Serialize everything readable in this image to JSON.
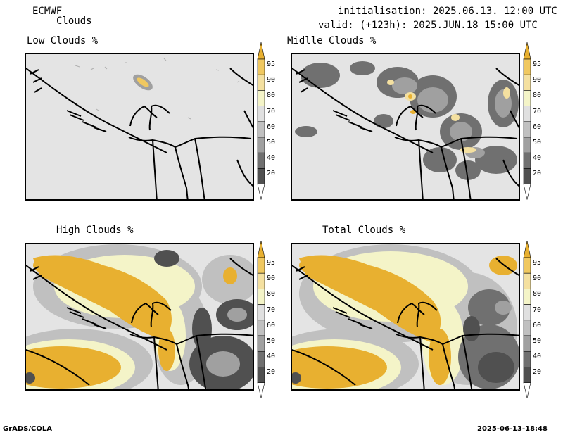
{
  "header": {
    "model": "ECMWF",
    "product": "Clouds",
    "init": "initialisation: 2025.06.13. 12:00 UTC",
    "valid": "valid: (+123h): 2025.JUN.18 15:00 UTC"
  },
  "panels": [
    {
      "title": "Low Clouds %"
    },
    {
      "title": "Midlle Clouds %"
    },
    {
      "title": "High Clouds %"
    },
    {
      "title": "Total Clouds %"
    }
  ],
  "colorbar": {
    "labels": [
      "95",
      "90",
      "80",
      "70",
      "60",
      "50",
      "40",
      "20"
    ],
    "colors": [
      "#e8b030",
      "#f0c860",
      "#f4e0a0",
      "#f4f4c8",
      "#e0e0e0",
      "#c0c0c0",
      "#a0a0a0",
      "#707070",
      "#505050"
    ]
  },
  "footer": {
    "left": "GrADS/COLA",
    "right": "2025-06-13-18:48"
  }
}
